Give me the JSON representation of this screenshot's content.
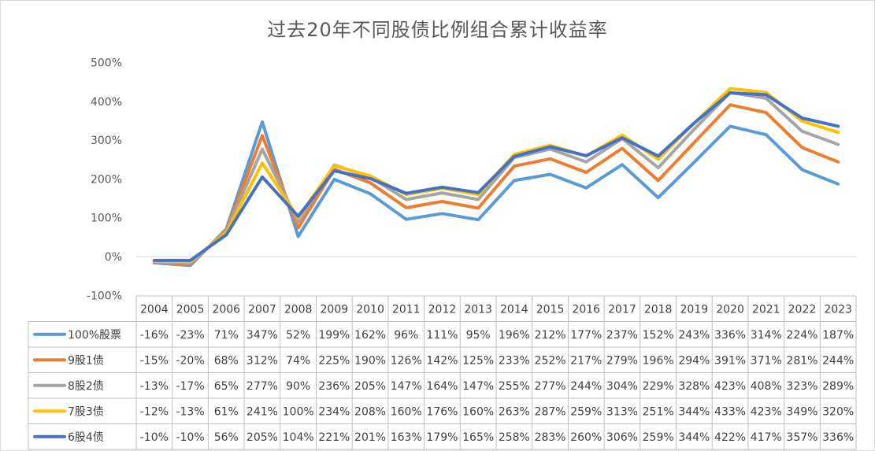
{
  "chart_data": {
    "type": "line",
    "title": "过去20年不同股债比例组合累计收益率",
    "xlabel": "",
    "ylabel": "",
    "ylim": [
      -100,
      500
    ],
    "yticks": [
      "-100%",
      "0%",
      "100%",
      "200%",
      "300%",
      "400%",
      "500%"
    ],
    "grid": false,
    "legend": "data-table",
    "categories": [
      "2004",
      "2005",
      "2006",
      "2007",
      "2008",
      "2009",
      "2010",
      "2011",
      "2012",
      "2013",
      "2014",
      "2015",
      "2016",
      "2017",
      "2018",
      "2019",
      "2020",
      "2021",
      "2022",
      "2023"
    ],
    "series": [
      {
        "name": "100%股票",
        "color": "#5b9bd5",
        "values": [
          -16,
          -23,
          71,
          347,
          52,
          199,
          162,
          96,
          111,
          95,
          196,
          212,
          177,
          237,
          152,
          243,
          336,
          314,
          224,
          187
        ]
      },
      {
        "name": "9股1债",
        "color": "#ed7d31",
        "values": [
          -15,
          -20,
          68,
          312,
          74,
          225,
          190,
          126,
          142,
          125,
          233,
          252,
          217,
          279,
          196,
          294,
          391,
          371,
          281,
          244
        ]
      },
      {
        "name": "8股2债",
        "color": "#a5a5a5",
        "values": [
          -13,
          -17,
          65,
          277,
          90,
          236,
          205,
          147,
          164,
          147,
          255,
          277,
          244,
          304,
          229,
          328,
          423,
          408,
          323,
          289
        ]
      },
      {
        "name": "7股3债",
        "color": "#ffc000",
        "values": [
          -12,
          -13,
          61,
          241,
          100,
          234,
          208,
          160,
          176,
          160,
          263,
          287,
          259,
          313,
          251,
          344,
          433,
          423,
          349,
          320
        ]
      },
      {
        "name": "6股4债",
        "color": "#4472c4",
        "values": [
          -10,
          -10,
          56,
          205,
          104,
          221,
          201,
          163,
          179,
          165,
          258,
          283,
          260,
          306,
          259,
          344,
          422,
          417,
          357,
          336
        ]
      }
    ]
  }
}
